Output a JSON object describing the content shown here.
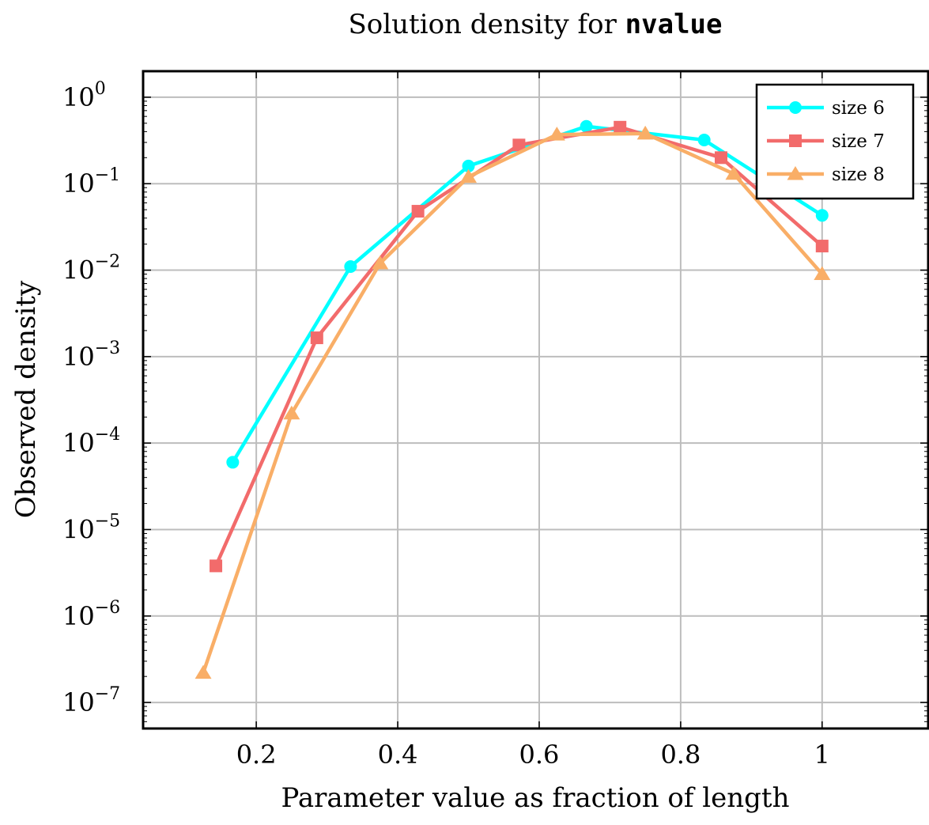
{
  "chart_data": {
    "type": "line",
    "title_prefix": "Solution density for ",
    "title_code": "nvalue",
    "xlabel": "Parameter value as fraction of length",
    "ylabel": "Observed density",
    "y_scale": "log",
    "xlim": [
      0.04,
      1.15
    ],
    "ylim": [
      5e-08,
      2
    ],
    "x_ticks": [
      "0.2",
      "0.4",
      "0.6",
      "0.8",
      "1"
    ],
    "x_tick_values": [
      0.2,
      0.4,
      0.6,
      0.8,
      1.0
    ],
    "y_ticks": [
      "0",
      "−1",
      "−2",
      "−3",
      "−4",
      "−5",
      "−6",
      "−7"
    ],
    "y_tick_base": "10",
    "y_tick_exponents": [
      0,
      -1,
      -2,
      -3,
      -4,
      -5,
      -6,
      -7
    ],
    "grid": true,
    "legend_position": "top-right",
    "series": [
      {
        "name": "size 6",
        "color": "#00ffff",
        "marker": "circle",
        "x": [
          0.1667,
          0.3333,
          0.5,
          0.6667,
          0.8333,
          1.0
        ],
        "y": [
          6e-05,
          0.011,
          0.16,
          0.46,
          0.32,
          0.043
        ]
      },
      {
        "name": "size 7",
        "color": "#f26b6b",
        "marker": "square",
        "x": [
          0.1429,
          0.2857,
          0.4286,
          0.5714,
          0.7143,
          0.8571,
          1.0
        ],
        "y": [
          3.8e-06,
          0.00165,
          0.048,
          0.28,
          0.45,
          0.2,
          0.019
        ]
      },
      {
        "name": "size 8",
        "color": "#f9ae67",
        "marker": "triangle",
        "x": [
          0.125,
          0.25,
          0.375,
          0.5,
          0.625,
          0.75,
          0.875,
          1.0
        ],
        "y": [
          2.2e-07,
          0.00022,
          0.012,
          0.12,
          0.37,
          0.38,
          0.13,
          0.009
        ]
      }
    ]
  }
}
